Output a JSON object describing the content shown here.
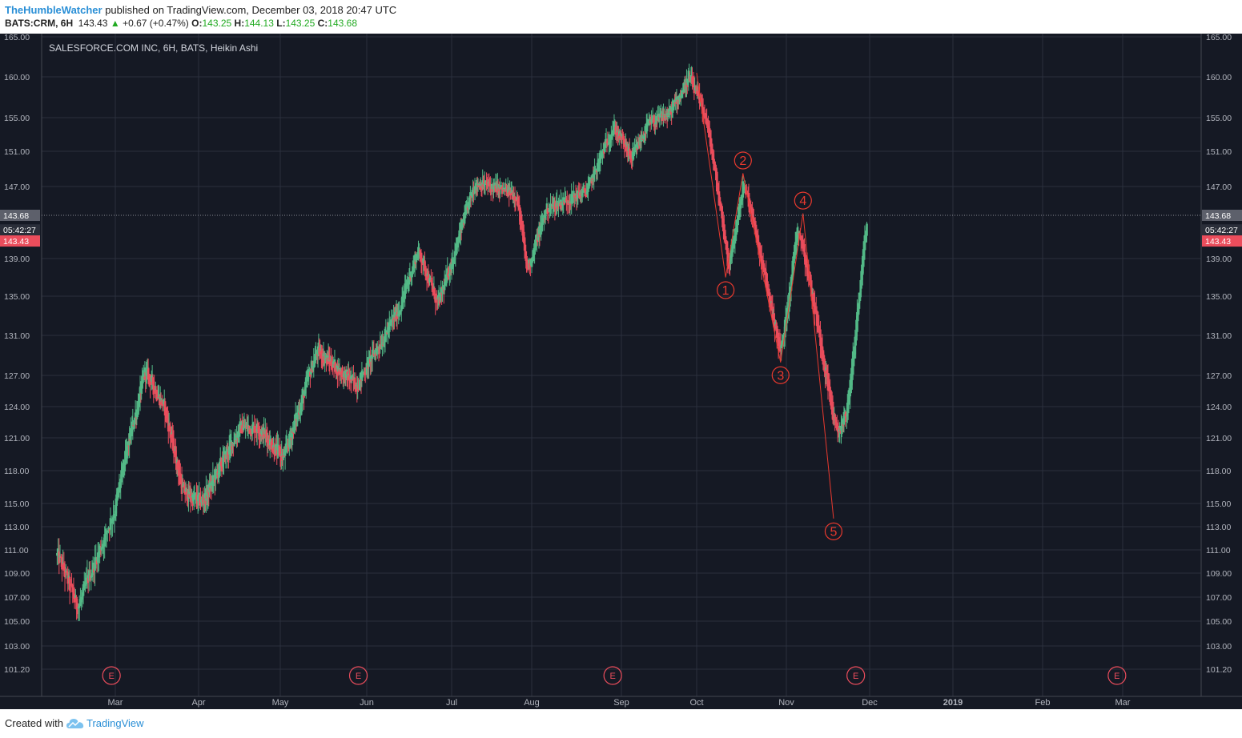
{
  "header": {
    "author": "TheHumbleWatcher",
    "published_text": " published on TradingView.com, December 03, 2018 20:47 UTC"
  },
  "quote": {
    "symbol": "BATS:CRM, 6H",
    "last": "143.43",
    "arrow": "▲",
    "change": "+0.67 (+0.47%)",
    "o_label": "O:",
    "o": "143.25",
    "h_label": "H:",
    "h": "144.13",
    "l_label": "L:",
    "l": "143.25",
    "c_label": "C:",
    "c": "143.68"
  },
  "footer": {
    "created": "Created with",
    "brand": "TradingView"
  },
  "colors": {
    "background": "#151924",
    "grid": "#2a2f3d",
    "up": "#53b987",
    "down": "#eb4d5c",
    "wave": "#e8392e",
    "axis_text": "#b2b5be"
  },
  "chart_data": {
    "type": "candlestick",
    "title": "SALESFORCE.COM INC, 6H, BATS, Heikin Ashi",
    "ylim": [
      100.0,
      165.0
    ],
    "y_ticks": [
      "165.00",
      "160.00",
      "155.00",
      "151.00",
      "147.00",
      "143.68",
      "139.00",
      "135.00",
      "131.00",
      "127.00",
      "124.00",
      "121.00",
      "118.00",
      "115.00",
      "113.00",
      "111.00",
      "109.00",
      "107.00",
      "105.00",
      "103.00",
      "101.20"
    ],
    "x_ticks": [
      "Mar",
      "Apr",
      "May",
      "Jun",
      "Jul",
      "Aug",
      "Sep",
      "Oct",
      "Nov",
      "Dec",
      "2019",
      "Feb",
      "Mar"
    ],
    "bold_x_tick": "2019",
    "price_tags": [
      {
        "label": "143.68",
        "value": 143.68,
        "kind": "close"
      },
      {
        "label": "05:42:27",
        "value": 142.1,
        "kind": "countdown"
      },
      {
        "label": "143.43",
        "value": 140.9,
        "kind": "last"
      }
    ],
    "trend_path": [
      [
        "2018-02-14",
        110.5
      ],
      [
        "2018-02-19",
        106.0
      ],
      [
        "2018-02-28",
        114.0
      ],
      [
        "2018-03-12",
        127.5
      ],
      [
        "2018-03-19",
        124.0
      ],
      [
        "2018-03-26",
        116.0
      ],
      [
        "2018-04-02",
        115.0
      ],
      [
        "2018-04-16",
        122.0
      ],
      [
        "2018-04-23",
        122.0
      ],
      [
        "2018-05-02",
        119.0
      ],
      [
        "2018-05-14",
        129.5
      ],
      [
        "2018-05-28",
        126.0
      ],
      [
        "2018-06-12",
        133.5
      ],
      [
        "2018-06-19",
        140.0
      ],
      [
        "2018-06-26",
        134.0
      ],
      [
        "2018-07-10",
        147.5
      ],
      [
        "2018-07-26",
        146.0
      ],
      [
        "2018-07-30",
        137.5
      ],
      [
        "2018-08-06",
        144.5
      ],
      [
        "2018-08-20",
        146.5
      ],
      [
        "2018-08-29",
        154.0
      ],
      [
        "2018-09-05",
        150.0
      ],
      [
        "2018-09-11",
        154.0
      ],
      [
        "2018-09-20",
        155.5
      ],
      [
        "2018-09-28",
        160.0
      ],
      [
        "2018-10-04",
        155.0
      ],
      [
        "2018-10-12",
        138.0
      ],
      [
        "2018-10-17",
        147.5
      ],
      [
        "2018-10-25",
        136.0
      ],
      [
        "2018-10-30",
        129.0
      ],
      [
        "2018-11-05",
        143.0
      ],
      [
        "2018-11-14",
        129.0
      ],
      [
        "2018-11-19",
        121.0
      ],
      [
        "2018-11-23",
        124.0
      ],
      [
        "2018-11-27",
        135.0
      ],
      [
        "2018-11-30",
        143.4
      ]
    ],
    "wave_count": [
      {
        "label": "1",
        "date": "2018-10-11",
        "value": 137.0
      },
      {
        "label": "2",
        "date": "2018-10-17",
        "value": 148.5
      },
      {
        "label": "3",
        "date": "2018-10-30",
        "value": 128.3
      },
      {
        "label": "4",
        "date": "2018-11-07",
        "value": 143.9
      },
      {
        "label": "5",
        "date": "2018-11-18",
        "value": 113.7
      }
    ],
    "wave_start": {
      "date": "2018-10-01",
      "value": 160.5
    },
    "earnings_markers": [
      {
        "label": "E",
        "date": "2018-02-28"
      },
      {
        "label": "E",
        "date": "2018-05-29"
      },
      {
        "label": "E",
        "date": "2018-08-29"
      },
      {
        "label": "E",
        "date": "2018-11-26"
      },
      {
        "label": "E",
        "date": "2019-02-27"
      }
    ]
  }
}
